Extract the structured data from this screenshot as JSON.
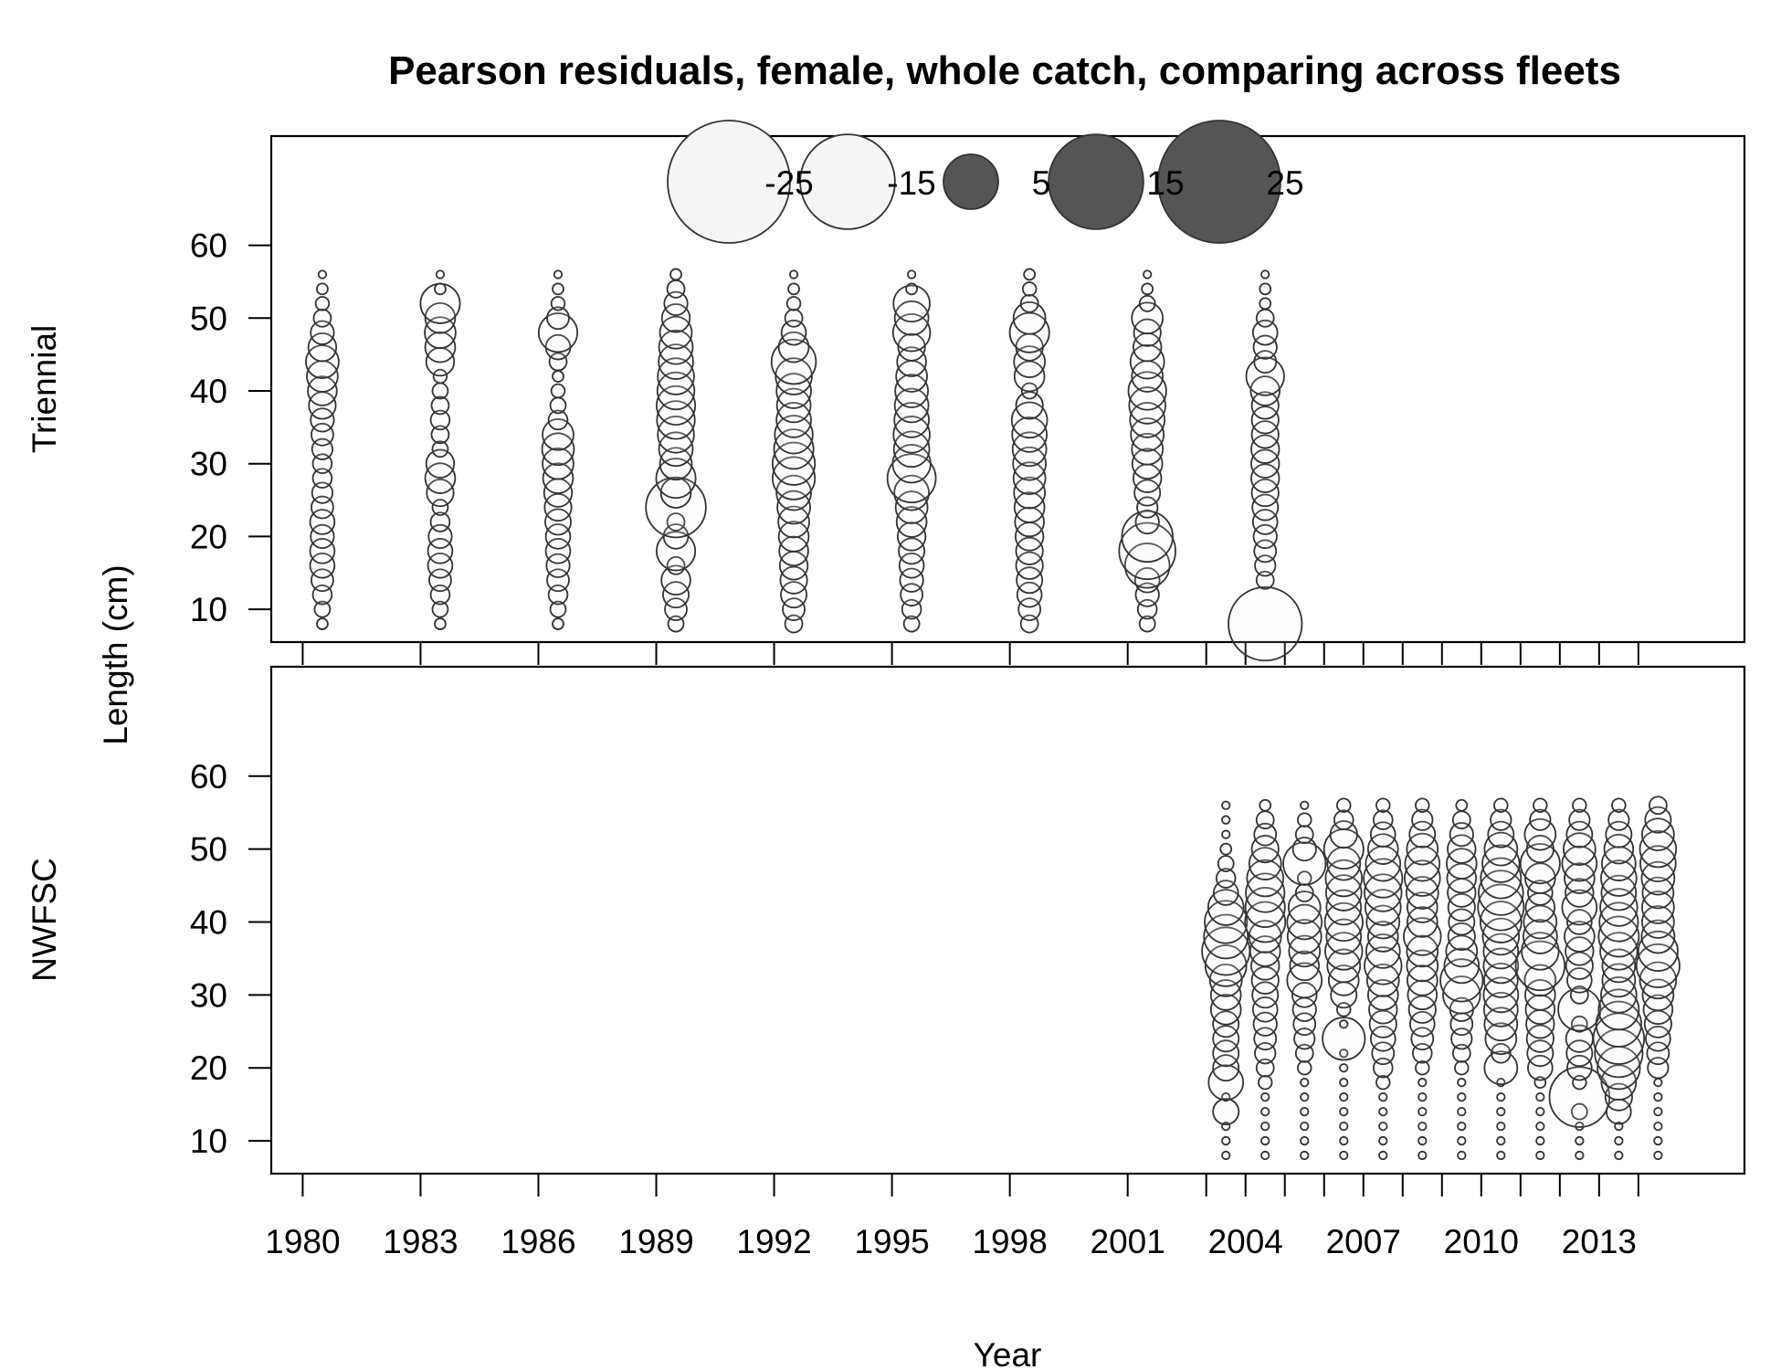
{
  "chart_data": {
    "type": "scatter",
    "subtype": "bubble",
    "title": "Pearson residuals, female, whole catch, comparing across fleets",
    "xlabel": "Year",
    "ylabel": "Length (cm)",
    "xlim": [
      1979.2,
      2016.7
    ],
    "ylim": [
      5.5,
      75
    ],
    "x_ticks": [
      1980,
      1983,
      1986,
      1989,
      1992,
      1995,
      1998,
      2001,
      2004,
      2007,
      2010,
      2013
    ],
    "x_minor_ticks": [
      2003,
      2005,
      2006,
      2008,
      2009,
      2011,
      2012,
      2014
    ],
    "y_ticks": [
      10,
      20,
      30,
      40,
      50,
      60
    ],
    "legend": {
      "placement": "top",
      "values": [
        -25,
        -15,
        5,
        15,
        25
      ],
      "labels": [
        "-25",
        "-15",
        "5",
        "15",
        "25"
      ]
    },
    "colors": {
      "negative": "#f5f5f5",
      "positive": "#555555",
      "edge": "#333333"
    },
    "panels": [
      {
        "name": "Triennial",
        "years": [
          1980.5,
          1983.5,
          1986.5,
          1989.5,
          1992.5,
          1995.5,
          1998.5,
          2001.5,
          2004.5
        ],
        "residuals": [
          [
            0.2,
            0.4,
            0.6,
            0.8,
            1.0,
            1.0,
            0.9,
            1.0,
            0.8,
            0.7,
            0.6,
            0.6,
            0.7,
            0.8,
            0.9,
            1.2,
            1.4,
            1.6,
            1.8,
            1.3,
            0.9,
            0.5,
            0.3,
            0.2,
            0.1
          ],
          [
            0.2,
            0.4,
            0.6,
            0.8,
            1.0,
            1.0,
            0.9,
            0.6,
            0.4,
            1.2,
            1.5,
            1.3,
            0.4,
            0.5,
            0.6,
            0.5,
            0.4,
            0.3,
            1.3,
            1.5,
            1.6,
            1.5,
            2.6,
            0.2,
            0.1
          ],
          [
            0.2,
            0.4,
            0.6,
            0.8,
            0.9,
            1.0,
            1.0,
            1.1,
            1.2,
            1.3,
            1.5,
            1.6,
            1.7,
            1.6,
            0.6,
            0.4,
            0.3,
            0.2,
            0.5,
            1.0,
            2.5,
            0.8,
            0.3,
            0.2,
            0.1
          ],
          [
            0.4,
            0.8,
            1.1,
            1.4,
            0.5,
            2.5,
            1.0,
            0.5,
            6.0,
            1.5,
            2.6,
            1.7,
            1.9,
            2.2,
            2.4,
            2.5,
            2.3,
            2.2,
            2.0,
            1.9,
            1.7,
            1.3,
            0.9,
            0.5,
            0.2
          ],
          [
            0.5,
            0.8,
            1.1,
            1.2,
            1.3,
            1.4,
            1.5,
            1.6,
            1.8,
            2.0,
            3.0,
            3.0,
            2.6,
            2.4,
            2.0,
            1.9,
            2.0,
            2.2,
            3.3,
            1.5,
            1.0,
            0.5,
            0.3,
            0.2,
            0.1
          ],
          [
            0.4,
            0.6,
            0.8,
            0.9,
            1.0,
            1.1,
            1.3,
            1.5,
            1.7,
            2.0,
            3.9,
            2.4,
            2.1,
            2.2,
            2.0,
            1.9,
            1.8,
            1.6,
            1.4,
            1.2,
            2.3,
            1.9,
            2.2,
            0.2,
            0.1
          ],
          [
            0.5,
            0.8,
            1.0,
            1.1,
            1.2,
            1.2,
            1.3,
            1.4,
            1.5,
            1.6,
            1.7,
            1.8,
            1.9,
            2.0,
            2.1,
            1.2,
            0.4,
            1.5,
            1.6,
            1.2,
            2.6,
            1.7,
            0.5,
            0.3,
            0.2
          ],
          [
            0.4,
            0.6,
            0.9,
            1.0,
            3.3,
            5.3,
            4.3,
            0.9,
            0.7,
            1.1,
            1.3,
            1.5,
            1.6,
            1.8,
            2.0,
            2.2,
            2.4,
            1.6,
            1.9,
            1.3,
            1.2,
            1.6,
            0.4,
            0.2,
            0.1
          ],
          [
            9.0,
            0,
            0,
            0.5,
            0.7,
            0.8,
            0.9,
            1.0,
            1.1,
            1.2,
            1.3,
            1.3,
            1.3,
            1.2,
            1.2,
            1.2,
            1.4,
            2.4,
            0.8,
            0.9,
            1.0,
            0.5,
            0.2,
            0.2,
            0.1
          ]
        ]
      },
      {
        "name": "NWFSC",
        "years": [
          2003.5,
          2004.5,
          2005.5,
          2006.5,
          2007.5,
          2008.5,
          2009.5,
          2010.5,
          2011.5,
          2012.5,
          2013.5,
          2014.5
        ],
        "residuals": [
          [
            0.1,
            0.1,
            0.1,
            1.1,
            0.1,
            2.0,
            1.1,
            1.1,
            1.1,
            1.1,
            1.5,
            1.5,
            1.7,
            2.8,
            3.8,
            3.2,
            3.0,
            2.1,
            1.0,
            0.6,
            0.4,
            0.2,
            0.1,
            0.1,
            0.1
          ],
          [
            0.1,
            0.1,
            0.1,
            0.1,
            0.1,
            0.3,
            0.5,
            0.7,
            0.8,
            0.9,
            1.0,
            1.1,
            1.2,
            1.3,
            1.5,
            1.7,
            2.7,
            2.6,
            2.5,
            2.2,
            1.7,
            1.2,
            0.8,
            0.5,
            0.2
          ],
          [
            0.1,
            0.1,
            0.1,
            0.1,
            0.1,
            0.1,
            0.3,
            0.5,
            0.7,
            0.8,
            0.9,
            1.0,
            2.0,
            1.4,
            1.6,
            1.9,
            2.0,
            1.7,
            0.5,
            0.3,
            3.0,
            0.9,
            0.5,
            0.3,
            0.1
          ],
          [
            0.1,
            0.1,
            0.1,
            0.1,
            0.1,
            0.1,
            0.1,
            0.1,
            3.0,
            0.1,
            0.3,
            1.1,
            1.5,
            1.8,
            2.3,
            2.0,
            2.4,
            2.0,
            2.1,
            2.2,
            1.8,
            2.6,
            1.2,
            0.6,
            0.3
          ],
          [
            0.1,
            0.1,
            0.1,
            0.1,
            0.1,
            0.3,
            0.6,
            0.8,
            1.0,
            1.2,
            1.3,
            1.5,
            1.7,
            2.3,
            1.9,
            1.5,
            1.8,
            2.1,
            2.3,
            2.5,
            2.0,
            1.5,
            1.0,
            0.6,
            0.3
          ],
          [
            0.1,
            0.1,
            0.1,
            0.1,
            0.1,
            0.1,
            0.3,
            0.6,
            0.8,
            1.0,
            1.2,
            1.4,
            1.5,
            1.6,
            1.6,
            2.3,
            1.5,
            1.5,
            1.7,
            2.1,
            2.0,
            1.6,
            1.1,
            0.7,
            0.3
          ],
          [
            0.1,
            0.1,
            0.1,
            0.1,
            0.1,
            0.1,
            0.3,
            0.5,
            0.7,
            0.8,
            0.9,
            2.3,
            3.0,
            2.0,
            1.6,
            1.2,
            1.1,
            1.2,
            1.3,
            1.4,
            1.5,
            1.3,
            0.9,
            0.5,
            0.2
          ],
          [
            0.1,
            0.1,
            0.1,
            0.1,
            0.1,
            0.1,
            1.8,
            0.6,
            1.6,
            1.8,
            1.9,
            2.0,
            1.9,
            2.0,
            2.0,
            2.2,
            2.8,
            3.5,
            3.3,
            2.7,
            2.3,
            1.8,
            1.1,
            0.7,
            0.3
          ],
          [
            0.1,
            0.1,
            0.1,
            0.1,
            0.1,
            0.2,
            1.0,
            1.1,
            1.2,
            1.3,
            1.4,
            1.5,
            1.6,
            4.0,
            2.3,
            1.9,
            1.8,
            1.4,
            1.0,
            1.5,
            2.6,
            1.2,
            1.6,
            0.7,
            0.3
          ],
          [
            0.1,
            0.1,
            0.1,
            0.4,
            6.0,
            0.3,
            1.0,
            1.1,
            1.2,
            0.4,
            3.0,
            0.5,
            1.0,
            1.2,
            1.3,
            1.5,
            1.0,
            2.0,
            1.3,
            1.5,
            2.0,
            1.7,
            1.1,
            0.7,
            0.3
          ],
          [
            0.1,
            0.1,
            0.1,
            1.0,
            1.2,
            2.0,
            3.0,
            3.8,
            4.3,
            3.4,
            2.7,
            2.1,
            1.8,
            1.8,
            2.3,
            2.7,
            2.5,
            2.3,
            2.0,
            2.1,
            1.9,
            1.4,
            1.1,
            0.7,
            0.3
          ],
          [
            0.1,
            0.1,
            0.1,
            0.1,
            0.1,
            0.1,
            0.7,
            0.8,
            1.0,
            1.2,
            1.4,
            1.6,
            2.2,
            3.1,
            2.6,
            1.8,
            1.7,
            1.7,
            1.6,
            1.8,
            2.1,
            2.2,
            1.7,
            1.1,
            0.5
          ]
        ]
      }
    ]
  }
}
